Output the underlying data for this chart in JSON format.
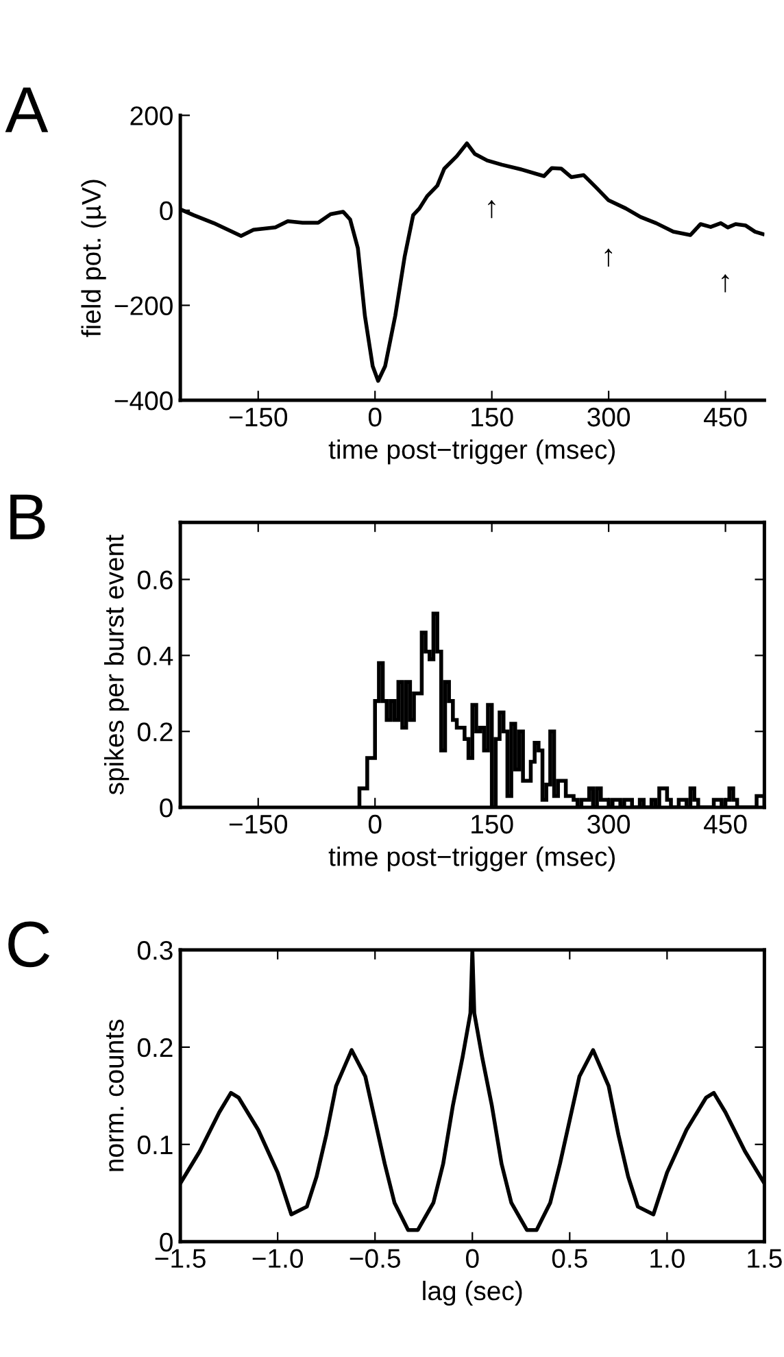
{
  "chart_data": [
    {
      "type": "line",
      "title": "A",
      "xlabel": "time post−trigger (msec)",
      "ylabel": "field pot. (µV)",
      "xlim": [
        -250,
        500
      ],
      "ylim": [
        -400,
        200
      ],
      "xticks": [
        {
          "value": -150,
          "label": "−150"
        },
        0,
        150,
        300,
        450
      ],
      "yticks": [
        {
          "value": -400,
          "label": "−400"
        },
        {
          "value": -200,
          "label": "−200"
        },
        0,
        200
      ],
      "series": [
        {
          "color": "#000000",
          "x": [
            -247,
            -233,
            -207,
            -172,
            -156,
            -128,
            -112,
            -93,
            -73,
            -57,
            -41,
            -32,
            -22,
            -13,
            -3,
            4,
            13,
            26,
            38,
            49,
            57,
            67,
            80,
            89,
            105,
            118,
            128,
            144,
            163,
            188,
            217,
            227,
            239,
            252,
            268,
            284,
            300,
            322,
            341,
            361,
            383,
            405,
            418,
            431,
            444,
            453,
            463,
            476,
            488,
            498
          ],
          "values": [
            0,
            -10,
            -27,
            -54,
            -41,
            -36,
            -23,
            -26,
            -26,
            -8,
            -3,
            -19,
            -80,
            -222,
            -328,
            -359,
            -328,
            -222,
            -98,
            -10,
            4,
            30,
            52,
            88,
            114,
            141,
            119,
            105,
            96,
            86,
            72,
            89,
            88,
            70,
            74,
            48,
            21,
            4,
            -14,
            -27,
            -45,
            -52,
            -29,
            -35,
            -27,
            -36,
            -29,
            -32,
            -45,
            -50
          ]
        }
      ],
      "annotations": [
        "↑",
        "↑",
        "↑"
      ]
    },
    {
      "type": "histogram",
      "title": "B",
      "xlabel": "time post−trigger (msec)",
      "ylabel": "spikes per burst event",
      "xlim": [
        -250,
        500
      ],
      "ylim": [
        0,
        0.75
      ],
      "xticks": [
        {
          "value": -150,
          "label": "−150"
        },
        0,
        150,
        300,
        450
      ],
      "yticks": [
        0,
        0.2,
        0.4,
        0.6
      ],
      "color": "#000000",
      "bins": [
        -20,
        -15,
        -10,
        -5,
        0,
        5,
        10,
        15,
        20,
        25,
        30,
        35,
        40,
        45,
        50,
        55,
        60,
        65,
        70,
        75,
        80,
        85,
        90,
        95,
        100,
        105,
        110,
        115,
        120,
        125,
        130,
        135,
        140,
        145,
        150,
        155,
        160,
        165,
        170,
        175,
        180,
        185,
        190,
        195,
        200,
        205,
        210,
        215,
        220,
        225,
        230,
        235,
        240,
        245,
        250,
        255,
        260,
        265,
        270,
        275,
        280,
        285,
        290,
        295,
        300,
        305,
        310,
        315,
        320,
        325,
        330,
        335,
        340,
        345,
        350,
        355,
        360,
        365,
        370,
        375,
        380,
        385,
        390,
        395,
        400,
        405,
        410,
        415,
        420,
        425,
        430,
        435,
        440,
        445,
        450,
        455,
        460,
        465,
        470,
        475,
        480,
        485,
        490,
        495,
        500
      ],
      "values": [
        0.05,
        0.05,
        0.13,
        0.13,
        0.28,
        0.38,
        0.28,
        0.23,
        0.28,
        0.23,
        0.33,
        0.21,
        0.33,
        0.23,
        0.3,
        0.3,
        0.46,
        0.41,
        0.39,
        0.51,
        0.41,
        0.15,
        0.33,
        0.28,
        0.23,
        0.21,
        0.21,
        0.18,
        0.13,
        0.27,
        0.2,
        0.21,
        0.15,
        0.27,
        0,
        0.18,
        0.25,
        0.2,
        0.03,
        0.22,
        0.1,
        0.2,
        0.07,
        0.07,
        0.12,
        0.17,
        0.15,
        0.02,
        0.06,
        0.2,
        0.03,
        0.07,
        0.07,
        0.03,
        0.03,
        0.02,
        0,
        0.02,
        0.02,
        0.05,
        0,
        0.05,
        0.02,
        0.02,
        0,
        0.02,
        0.02,
        0,
        0.02,
        0.02,
        0,
        0,
        0.02,
        0,
        0,
        0.02,
        0,
        0.05,
        0.05,
        0.02,
        0,
        0,
        0.02,
        0.02,
        0,
        0.05,
        0.02,
        0,
        0,
        0,
        0,
        0.02,
        0.02,
        0,
        0.02,
        0.05,
        0.02,
        0,
        0,
        0,
        0,
        0,
        0.03,
        0.03
      ]
    },
    {
      "type": "line",
      "title": "C",
      "xlabel": "lag (sec)",
      "ylabel": "norm. counts",
      "xlim": [
        -1.5,
        1.5
      ],
      "ylim": [
        0,
        0.3
      ],
      "xticks": [
        {
          "value": -1.5,
          "label": "−1.5"
        },
        {
          "value": -1.0,
          "label": "−1.0"
        },
        {
          "value": -0.5,
          "label": "−0.5"
        },
        0,
        0.5,
        {
          "value": 1.0,
          "label": "1.0"
        },
        1.5
      ],
      "yticks": [
        0,
        0.1,
        0.2,
        0.3
      ],
      "series": [
        {
          "color": "#000000",
          "x": [
            -1.5,
            -1.4,
            -1.3,
            -1.24,
            -1.2,
            -1.1,
            -1.0,
            -0.93,
            -0.85,
            -0.8,
            -0.75,
            -0.7,
            -0.62,
            -0.55,
            -0.5,
            -0.45,
            -0.4,
            -0.33,
            -0.28,
            -0.2,
            -0.15,
            -0.1,
            -0.05,
            -0.01,
            0,
            0.01,
            0.05,
            0.1,
            0.15,
            0.2,
            0.28,
            0.33,
            0.4,
            0.45,
            0.5,
            0.55,
            0.62,
            0.7,
            0.75,
            0.8,
            0.85,
            0.93,
            1.0,
            1.1,
            1.2,
            1.24,
            1.3,
            1.4,
            1.5
          ],
          "values": [
            0.06,
            0.093,
            0.133,
            0.153,
            0.148,
            0.115,
            0.071,
            0.028,
            0.036,
            0.067,
            0.11,
            0.16,
            0.197,
            0.17,
            0.125,
            0.08,
            0.04,
            0.012,
            0.012,
            0.04,
            0.08,
            0.14,
            0.19,
            0.235,
            0.3,
            0.235,
            0.19,
            0.14,
            0.08,
            0.04,
            0.012,
            0.012,
            0.04,
            0.08,
            0.125,
            0.17,
            0.197,
            0.16,
            0.11,
            0.067,
            0.036,
            0.028,
            0.071,
            0.115,
            0.148,
            0.153,
            0.133,
            0.093,
            0.06
          ]
        }
      ]
    }
  ]
}
